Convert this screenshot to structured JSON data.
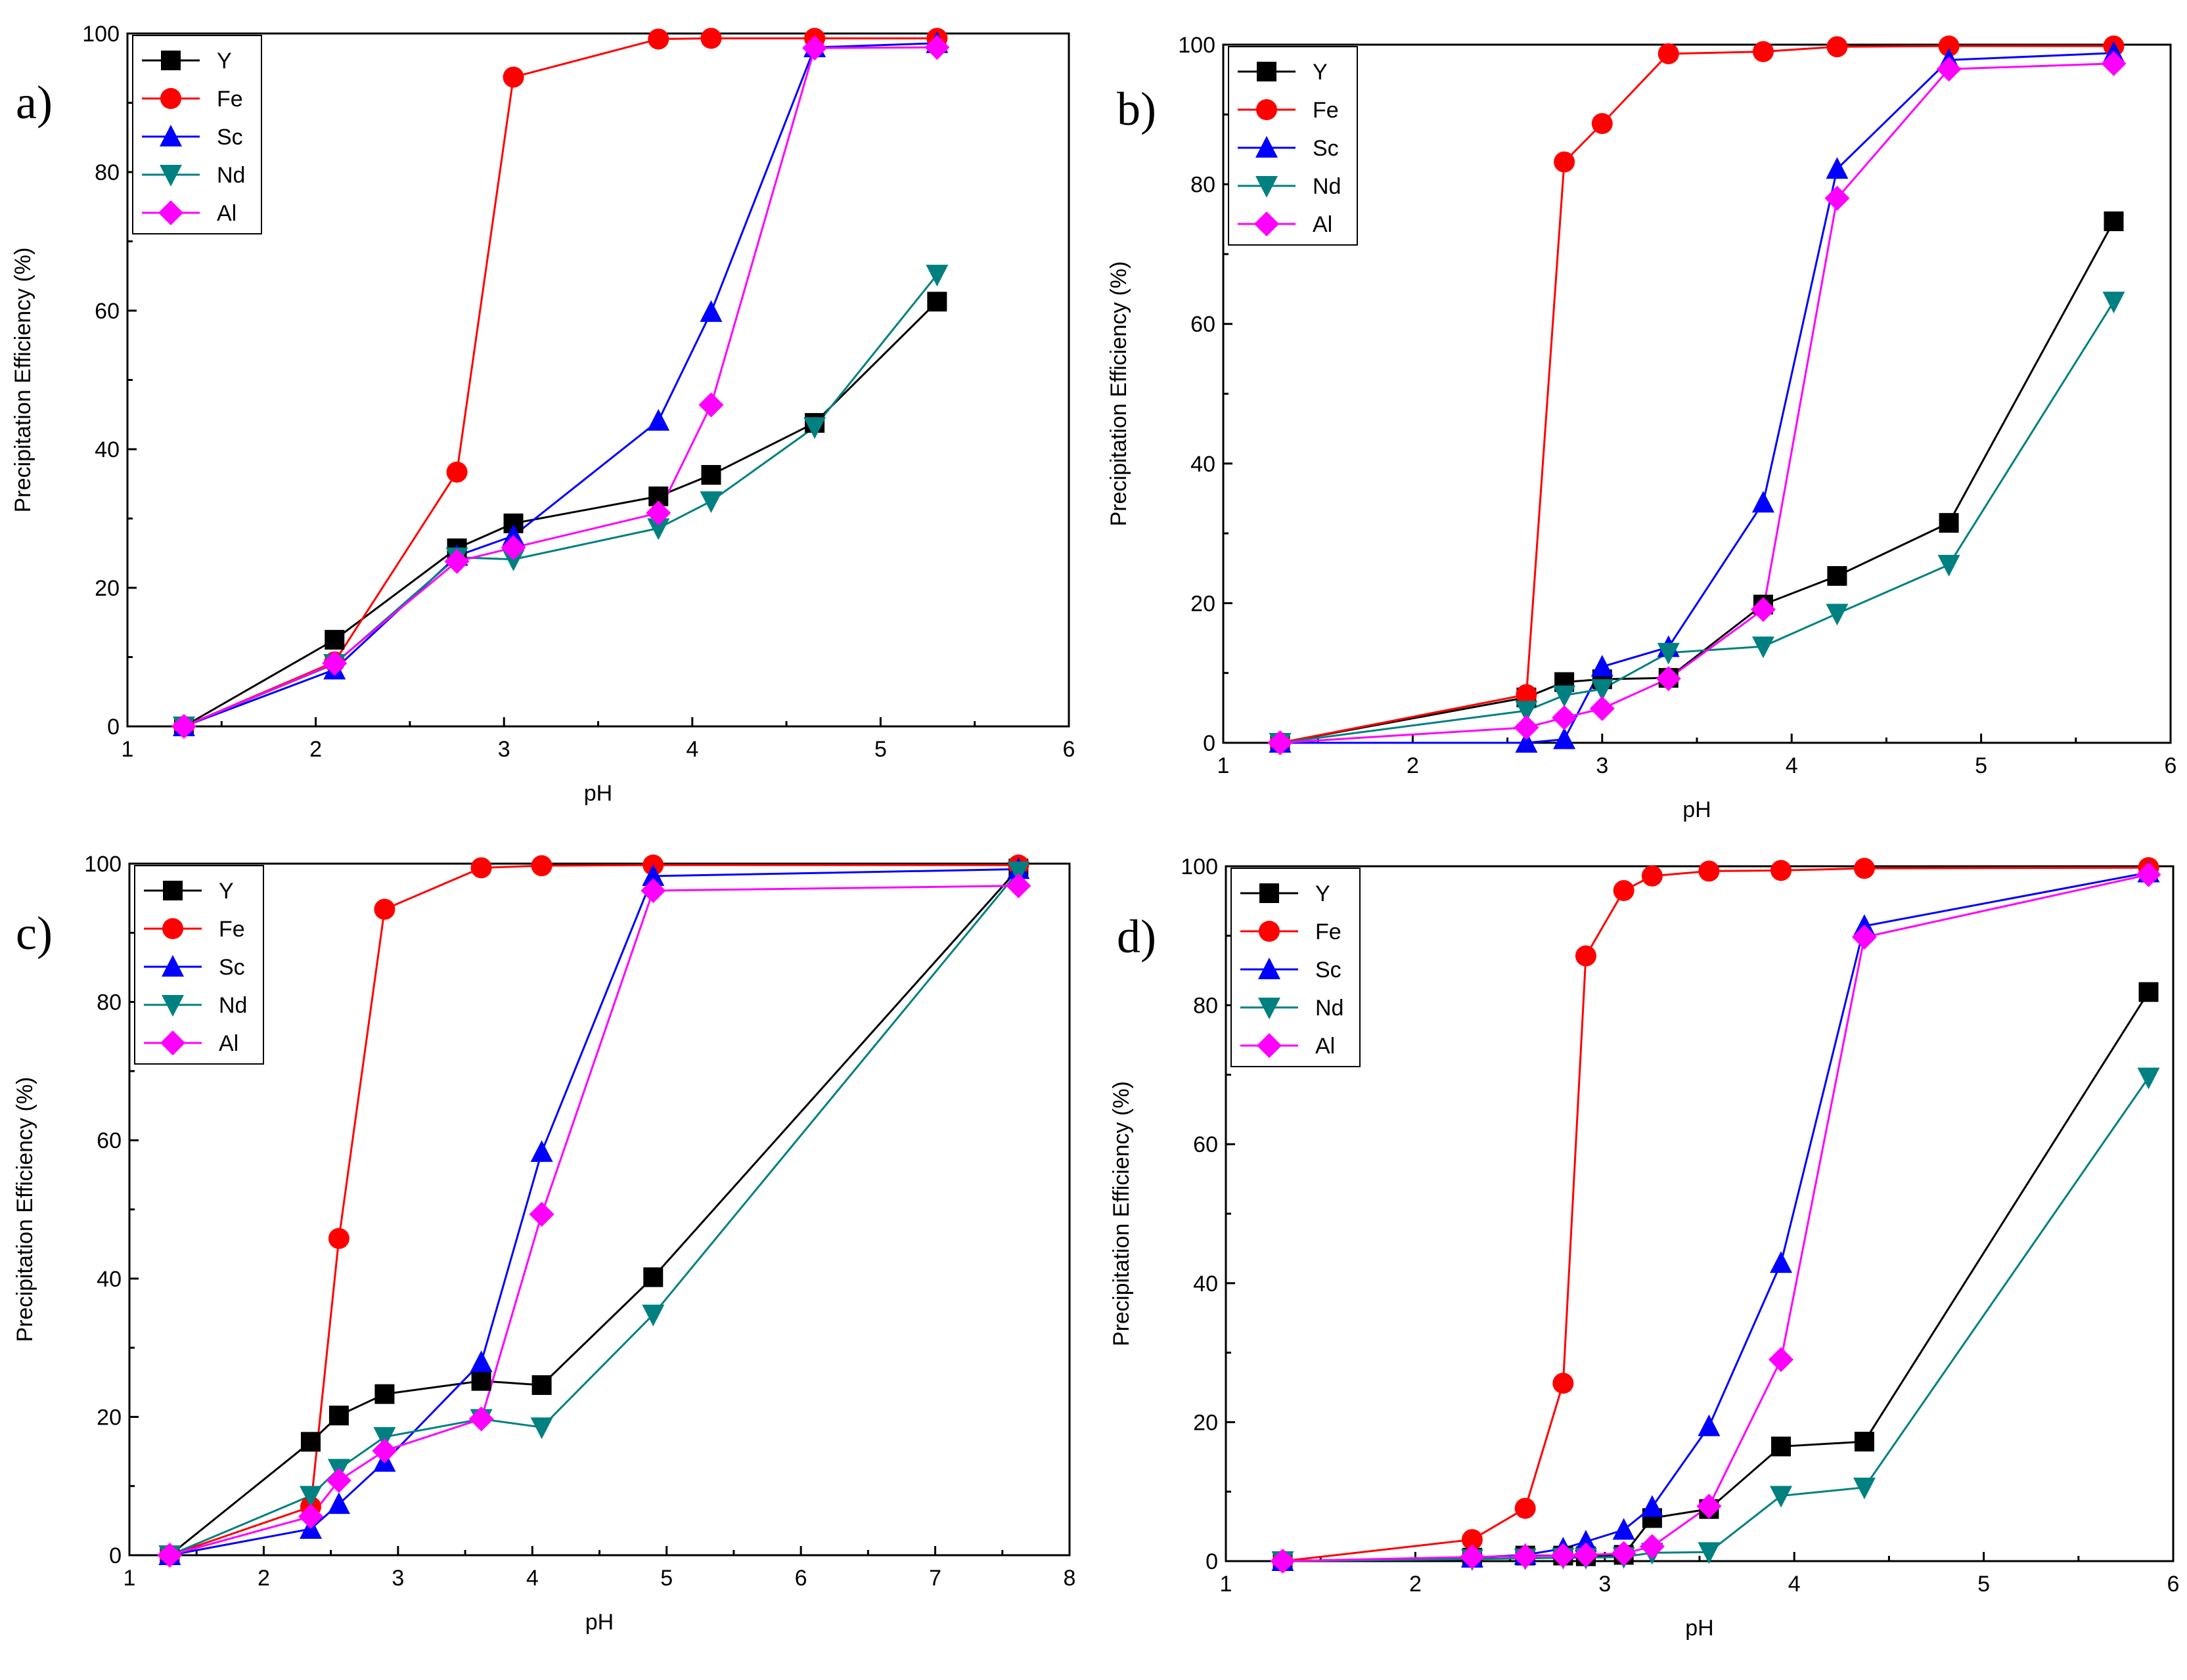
{
  "colors": {
    "Y": "#000000",
    "Fe": "#ff0000",
    "Sc": "#0000ff",
    "Nd": "#008080",
    "Al": "#ff00ff"
  },
  "markers": {
    "Y": "square",
    "Fe": "circle",
    "Sc": "triangle-up",
    "Nd": "triangle-down",
    "Al": "diamond"
  },
  "chart_data": [
    {
      "type": "line",
      "panel_label": "a)",
      "xlabel": "pH",
      "ylabel": "Precipitation Efficiency (%)",
      "xlim": [
        1,
        6
      ],
      "ylim": [
        0,
        100
      ],
      "xticks": [
        1,
        2,
        3,
        4,
        5,
        6
      ],
      "yticks": [
        0,
        20,
        40,
        60,
        80,
        100
      ],
      "legend": "top-left",
      "series": [
        {
          "name": "Y",
          "x": [
            1.3,
            2.1,
            2.75,
            3.05,
            3.82,
            4.1,
            4.65,
            5.3
          ],
          "y": [
            0,
            12.5,
            25.7,
            29.3,
            33.2,
            36.3,
            43.8,
            61.3
          ]
        },
        {
          "name": "Fe",
          "x": [
            1.3,
            2.1,
            2.75,
            3.05,
            3.82,
            4.1,
            4.65,
            5.3
          ],
          "y": [
            0,
            9.3,
            36.7,
            93.7,
            99.2,
            99.3,
            99.3,
            99.3
          ]
        },
        {
          "name": "Sc",
          "x": [
            1.3,
            2.1,
            2.75,
            3.05,
            3.82,
            4.1,
            4.65,
            5.3
          ],
          "y": [
            0,
            8.2,
            24.6,
            27.5,
            44.1,
            59.8,
            98.0,
            98.6
          ]
        },
        {
          "name": "Nd",
          "x": [
            1.3,
            2.1,
            2.75,
            3.05,
            3.82,
            4.1,
            4.65,
            5.3
          ],
          "y": [
            0,
            9.0,
            24.4,
            24.1,
            28.6,
            32.5,
            43.2,
            65.2
          ]
        },
        {
          "name": "Al",
          "x": [
            1.3,
            2.1,
            2.75,
            3.05,
            3.82,
            4.1,
            4.65,
            5.3
          ],
          "y": [
            0,
            9.1,
            23.8,
            25.8,
            30.8,
            46.4,
            97.9,
            98.0
          ]
        }
      ]
    },
    {
      "type": "line",
      "panel_label": "b)",
      "xlabel": "pH",
      "ylabel": "Precipitation Efficiency (%)",
      "xlim": [
        1,
        6
      ],
      "ylim": [
        0,
        100
      ],
      "xticks": [
        1,
        2,
        3,
        4,
        5,
        6
      ],
      "yticks": [
        0,
        20,
        40,
        60,
        80,
        100
      ],
      "legend": "top-left",
      "series": [
        {
          "name": "Y",
          "x": [
            1.3,
            2.6,
            2.8,
            3.0,
            3.35,
            3.85,
            4.24,
            4.83,
            5.7
          ],
          "y": [
            0,
            6.5,
            8.7,
            9.1,
            9.3,
            19.8,
            23.9,
            31.5,
            74.7
          ]
        },
        {
          "name": "Fe",
          "x": [
            1.3,
            2.6,
            2.8,
            3.0,
            3.35,
            3.85,
            4.24,
            4.83,
            5.7
          ],
          "y": [
            0,
            6.9,
            83.2,
            88.7,
            98.7,
            99.0,
            99.7,
            99.8,
            99.8
          ]
        },
        {
          "name": "Sc",
          "x": [
            1.3,
            2.6,
            2.8,
            3.0,
            3.35,
            3.85,
            4.24,
            4.83,
            5.7
          ],
          "y": [
            0,
            0,
            0.5,
            10.9,
            13.7,
            34.4,
            82.2,
            97.8,
            98.8
          ]
        },
        {
          "name": "Nd",
          "x": [
            1.3,
            2.6,
            2.8,
            3.0,
            3.35,
            3.85,
            4.24,
            4.83,
            5.7
          ],
          "y": [
            0,
            4.6,
            6.8,
            7.7,
            12.9,
            13.8,
            18.5,
            25.5,
            63.2
          ]
        },
        {
          "name": "Al",
          "x": [
            1.3,
            2.6,
            2.8,
            3.0,
            3.35,
            3.85,
            4.24,
            4.83,
            5.7
          ],
          "y": [
            0,
            2.2,
            3.6,
            4.9,
            9.2,
            19.1,
            78.0,
            96.5,
            97.3
          ]
        }
      ]
    },
    {
      "type": "line",
      "panel_label": "c)",
      "xlabel": "pH",
      "ylabel": "Precipitation Efficiency (%)",
      "xlim": [
        1,
        8
      ],
      "ylim": [
        0,
        100
      ],
      "xticks": [
        1,
        2,
        3,
        4,
        5,
        6,
        7,
        8
      ],
      "yticks": [
        0,
        20,
        40,
        60,
        80,
        100
      ],
      "legend": "top-left",
      "series": [
        {
          "name": "Y",
          "x": [
            1.3,
            2.35,
            2.56,
            2.9,
            3.62,
            4.07,
            4.9,
            7.62
          ],
          "y": [
            0,
            16.4,
            20.2,
            23.3,
            25.2,
            24.6,
            40.2,
            99.3
          ]
        },
        {
          "name": "Fe",
          "x": [
            1.3,
            2.35,
            2.56,
            2.9,
            3.62,
            4.07,
            4.9,
            7.62
          ],
          "y": [
            0,
            7.0,
            45.8,
            93.4,
            99.4,
            99.7,
            99.8,
            99.8
          ]
        },
        {
          "name": "Sc",
          "x": [
            1.3,
            2.35,
            2.56,
            2.9,
            3.62,
            4.07,
            4.9,
            7.62
          ],
          "y": [
            0,
            3.8,
            7.4,
            13.5,
            27.9,
            58.3,
            98.2,
            99.2
          ]
        },
        {
          "name": "Nd",
          "x": [
            1.3,
            2.35,
            2.56,
            2.9,
            3.62,
            4.07,
            4.9,
            7.62
          ],
          "y": [
            0,
            8.6,
            12.5,
            17.1,
            19.7,
            18.5,
            34.8,
            98.9
          ]
        },
        {
          "name": "Al",
          "x": [
            1.3,
            2.35,
            2.56,
            2.9,
            3.62,
            4.07,
            4.9,
            7.62
          ],
          "y": [
            0,
            5.6,
            10.8,
            15.1,
            19.7,
            49.3,
            96.1,
            96.8
          ]
        }
      ]
    },
    {
      "type": "line",
      "panel_label": "d)",
      "xlabel": "pH",
      "ylabel": "Precipitation Efficiency (%)",
      "xlim": [
        1,
        6
      ],
      "ylim": [
        0,
        100
      ],
      "xticks": [
        1,
        2,
        3,
        4,
        5,
        6
      ],
      "yticks": [
        0,
        20,
        40,
        60,
        80,
        100
      ],
      "legend": "top-left",
      "series": [
        {
          "name": "Y",
          "x": [
            1.3,
            2.3,
            2.58,
            2.78,
            2.9,
            3.1,
            3.25,
            3.55,
            3.93,
            4.37,
            5.87
          ],
          "y": [
            0,
            0.5,
            0.8,
            0.8,
            0.7,
            0.9,
            6.2,
            7.5,
            16.5,
            17.2,
            81.9
          ]
        },
        {
          "name": "Fe",
          "x": [
            1.3,
            2.3,
            2.58,
            2.78,
            2.9,
            3.1,
            3.25,
            3.55,
            3.93,
            4.37,
            5.87
          ],
          "y": [
            0,
            3.1,
            7.6,
            25.6,
            87.1,
            96.5,
            98.6,
            99.3,
            99.4,
            99.7,
            99.8
          ]
        },
        {
          "name": "Sc",
          "x": [
            1.3,
            2.3,
            2.58,
            2.78,
            2.9,
            3.1,
            3.25,
            3.55,
            3.93,
            4.37,
            5.87
          ],
          "y": [
            0,
            0.5,
            0.9,
            1.8,
            2.8,
            4.5,
            7.8,
            19.4,
            42.9,
            91.4,
            99.1
          ]
        },
        {
          "name": "Nd",
          "x": [
            1.3,
            2.3,
            2.58,
            2.78,
            2.9,
            3.1,
            3.25,
            3.55,
            3.93,
            4.37,
            5.87
          ],
          "y": [
            0,
            0.3,
            0.4,
            0.5,
            0.5,
            0.6,
            1.2,
            1.3,
            9.4,
            10.6,
            69.6
          ]
        },
        {
          "name": "Al",
          "x": [
            1.3,
            2.3,
            2.58,
            2.78,
            2.9,
            3.1,
            3.25,
            3.55,
            3.93,
            4.37,
            5.87
          ],
          "y": [
            0,
            0.6,
            0.7,
            0.8,
            0.9,
            1.1,
            2.1,
            7.9,
            29.0,
            89.8,
            98.8
          ]
        }
      ]
    }
  ]
}
